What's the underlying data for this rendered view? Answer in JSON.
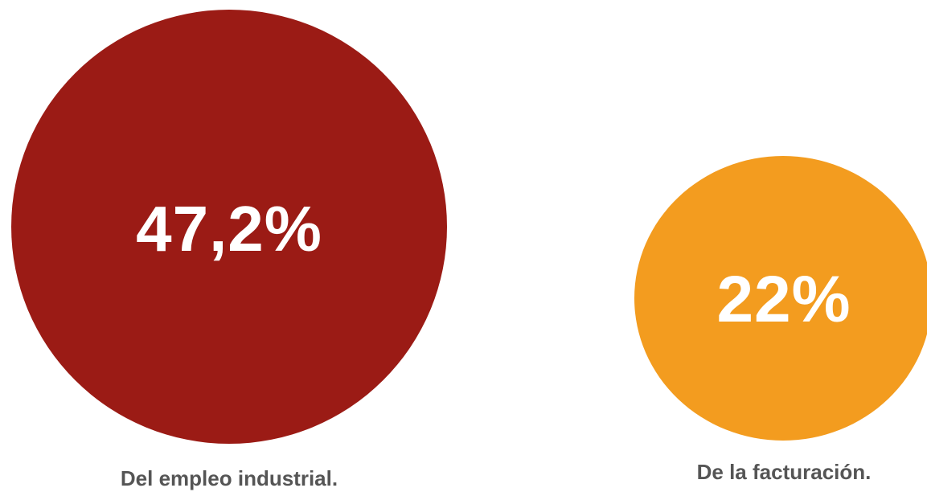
{
  "chart_data": {
    "type": "bubble",
    "title": "",
    "series": [
      {
        "label": "47,2%",
        "value": 47.2,
        "caption": "Del empleo industrial.",
        "color": "#9b1b15"
      },
      {
        "label": "22%",
        "value": 22,
        "caption": "De la facturación.",
        "color": "#f39c1f"
      }
    ],
    "value_text_color": "#ffffff",
    "caption_color": "#555555"
  }
}
